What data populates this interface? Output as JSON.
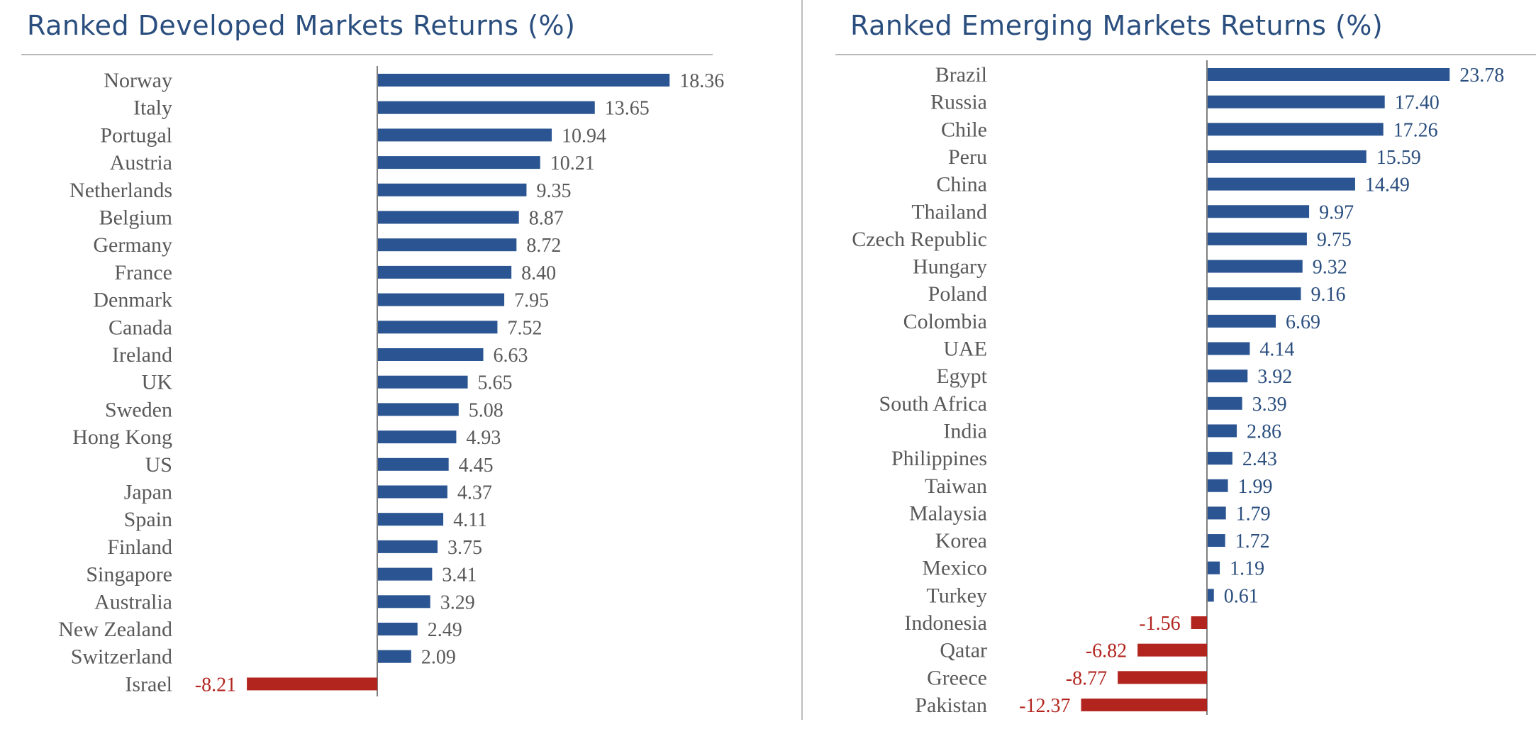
{
  "charts": {
    "developed": {
      "title": "Ranked Developed Markets Returns (%)"
    },
    "emerging": {
      "title": "Ranked Emerging Markets Returns (%)"
    }
  },
  "colors": {
    "title": "#2a4e7e",
    "positive_bar": "#2b5592",
    "negative_bar": "#b2251f",
    "positive_label": "#595959",
    "negative_label": "#b2251f",
    "category_label": "#595959",
    "axis": "#7f7f7f"
  },
  "chart_data": [
    {
      "type": "bar",
      "orientation": "horizontal",
      "title": "Ranked Developed Markets Returns (%)",
      "categories": [
        "Norway",
        "Italy",
        "Portugal",
        "Austria",
        "Netherlands",
        "Belgium",
        "Germany",
        "France",
        "Denmark",
        "Canada",
        "Ireland",
        "UK",
        "Sweden",
        "Hong Kong",
        "US",
        "Japan",
        "Spain",
        "Finland",
        "Singapore",
        "Australia",
        "New Zealand",
        "Switzerland",
        "Israel"
      ],
      "values": [
        18.36,
        13.65,
        10.94,
        10.21,
        9.35,
        8.87,
        8.72,
        8.4,
        7.95,
        7.52,
        6.63,
        5.65,
        5.08,
        4.93,
        4.45,
        4.37,
        4.11,
        3.75,
        3.41,
        3.29,
        2.49,
        2.09,
        -8.21
      ],
      "value_labels": [
        "18.36",
        "13.65",
        "10.94",
        "10.21",
        "9.35",
        "8.87",
        "8.72",
        "8.40",
        "7.95",
        "7.52",
        "6.63",
        "5.65",
        "5.08",
        "4.93",
        "4.45",
        "4.37",
        "4.11",
        "3.75",
        "3.41",
        "3.29",
        "2.49",
        "2.09",
        "-8.21"
      ],
      "xlabel": "",
      "ylabel": "",
      "grid": false,
      "legend": "none"
    },
    {
      "type": "bar",
      "orientation": "horizontal",
      "title": "Ranked Emerging Markets Returns (%)",
      "categories": [
        "Brazil",
        "Russia",
        "Chile",
        "Peru",
        "China",
        "Thailand",
        "Czech Republic",
        "Hungary",
        "Poland",
        "Colombia",
        "UAE",
        "Egypt",
        "South Africa",
        "India",
        "Philippines",
        "Taiwan",
        "Malaysia",
        "Korea",
        "Mexico",
        "Turkey",
        "Indonesia",
        "Qatar",
        "Greece",
        "Pakistan"
      ],
      "values": [
        23.78,
        17.4,
        17.26,
        15.59,
        14.49,
        9.97,
        9.75,
        9.32,
        9.16,
        6.69,
        4.14,
        3.92,
        3.39,
        2.86,
        2.43,
        1.99,
        1.79,
        1.72,
        1.19,
        0.61,
        -1.56,
        -6.82,
        -8.77,
        -12.37
      ],
      "value_labels": [
        "23.78",
        "17.40",
        "17.26",
        "15.59",
        "14.49",
        "9.97",
        "9.75",
        "9.32",
        "9.16",
        "6.69",
        "4.14",
        "3.92",
        "3.39",
        "2.86",
        "2.43",
        "1.99",
        "1.79",
        "1.72",
        "1.19",
        "0.61",
        "-1.56",
        "-6.82",
        "-8.77",
        "-12.37"
      ],
      "xlabel": "",
      "ylabel": "",
      "grid": false,
      "legend": "none"
    }
  ]
}
